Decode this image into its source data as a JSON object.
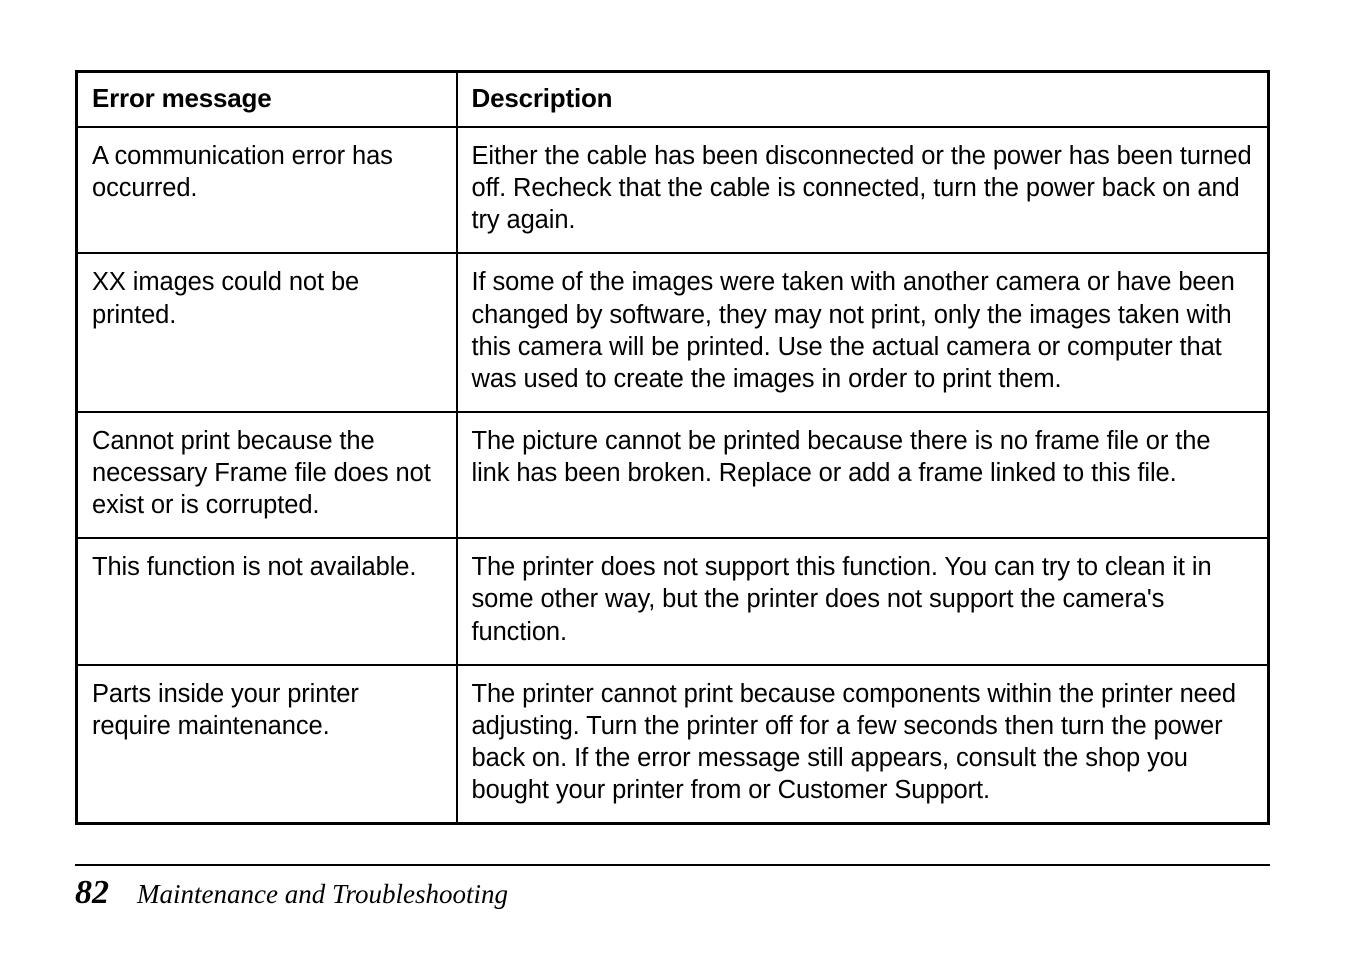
{
  "table": {
    "header": {
      "error_message": "Error message",
      "description": "Description"
    },
    "rows": [
      {
        "error": "A communication error has occurred.",
        "desc": "Either the cable has been disconnected or the power has been turned off. Recheck that the cable is connected, turn the power back on and try again."
      },
      {
        "error": "XX images could not be printed.",
        "desc": "If some of the images were taken with another camera or have been changed by software, they may not print, only the images taken with this camera will be printed. Use the actual camera or computer that was used to create the images in order to print them."
      },
      {
        "error": "Cannot print because the necessary Frame file does not exist or is corrupted.",
        "desc": "The picture cannot be printed because there is no frame file or the link has been broken. Replace or add a frame linked to this file."
      },
      {
        "error": "This function is not available.",
        "desc": "The printer does not support this function. You can try to clean it in some other way, but the printer does not support the camera's function."
      },
      {
        "error": "Parts inside your printer require maintenance.",
        "desc": "The printer cannot print because components within the printer need adjusting. Turn the printer off for a few seconds then turn the power back on. If the error message still appears, consult the shop you bought your printer from or Customer Support."
      }
    ]
  },
  "footer": {
    "page_number": "82",
    "chapter_title": "Maintenance and Troubleshooting"
  }
}
